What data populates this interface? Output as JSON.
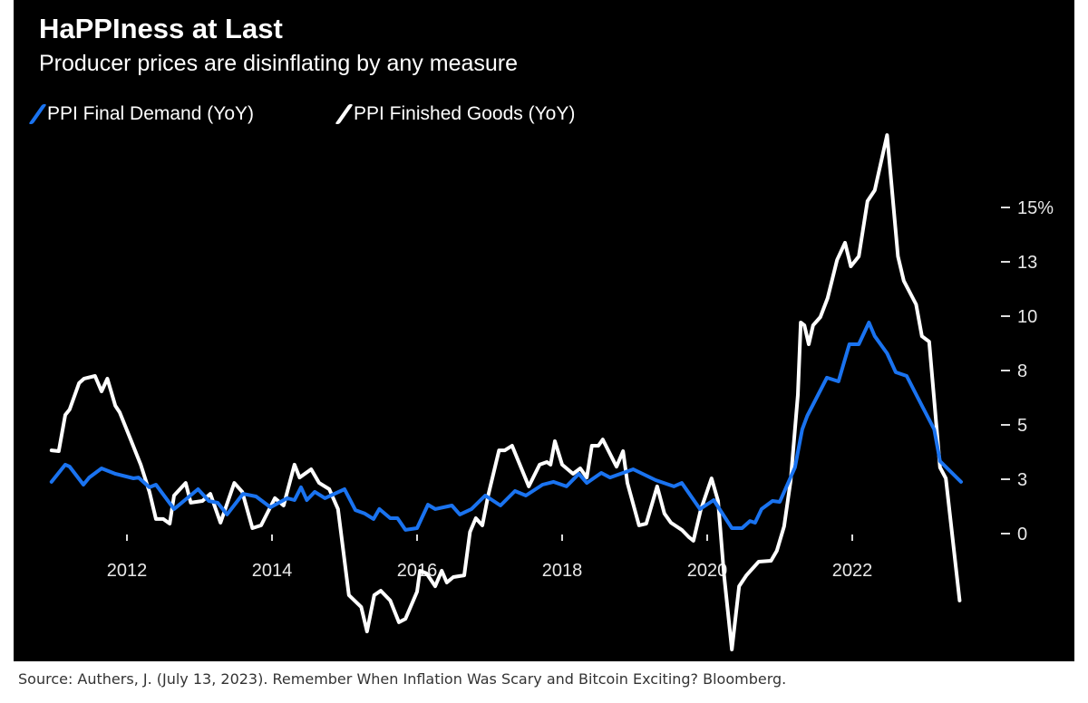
{
  "chart_data": {
    "type": "line",
    "title": "HaPPIness at Last",
    "subtitle": "Producer prices are disinflating by any measure",
    "legend_position": "top-left",
    "grid": false,
    "xlim": [
      2010.9,
      2023.6
    ],
    "ylim": [
      -6,
      19
    ],
    "x_ticks": [
      {
        "value": 2012,
        "label": "2012"
      },
      {
        "value": 2014,
        "label": "2014"
      },
      {
        "value": 2016,
        "label": "2016"
      },
      {
        "value": 2018,
        "label": "2018"
      },
      {
        "value": 2020,
        "label": "2020"
      },
      {
        "value": 2022,
        "label": "2022"
      }
    ],
    "y_ticks": [
      {
        "value": 15,
        "label": "15%"
      },
      {
        "value": 12.5,
        "label": "13"
      },
      {
        "value": 10,
        "label": "10"
      },
      {
        "value": 7.5,
        "label": "8"
      },
      {
        "value": 5,
        "label": "5"
      },
      {
        "value": 2.5,
        "label": "3"
      },
      {
        "value": 0,
        "label": "0"
      }
    ],
    "series": [
      {
        "name": "PPI Final Demand (YoY)",
        "color": "#1a73f0",
        "points": [
          [
            2010.96,
            2.38
          ],
          [
            2011.15,
            3.17
          ],
          [
            2011.21,
            3.08
          ],
          [
            2011.4,
            2.25
          ],
          [
            2011.48,
            2.58
          ],
          [
            2011.65,
            3.0
          ],
          [
            2011.84,
            2.75
          ],
          [
            2012.09,
            2.54
          ],
          [
            2012.16,
            2.58
          ],
          [
            2012.31,
            2.13
          ],
          [
            2012.4,
            2.25
          ],
          [
            2012.65,
            1.13
          ],
          [
            2012.98,
            2.04
          ],
          [
            2013.13,
            1.5
          ],
          [
            2013.25,
            1.42
          ],
          [
            2013.38,
            0.88
          ],
          [
            2013.6,
            1.83
          ],
          [
            2013.78,
            1.71
          ],
          [
            2013.98,
            1.21
          ],
          [
            2014.21,
            1.63
          ],
          [
            2014.31,
            1.54
          ],
          [
            2014.4,
            2.13
          ],
          [
            2014.48,
            1.54
          ],
          [
            2014.59,
            1.92
          ],
          [
            2014.73,
            1.63
          ],
          [
            2015.0,
            2.04
          ],
          [
            2015.15,
            1.08
          ],
          [
            2015.28,
            0.92
          ],
          [
            2015.4,
            0.67
          ],
          [
            2015.48,
            1.13
          ],
          [
            2015.63,
            0.71
          ],
          [
            2015.73,
            0.71
          ],
          [
            2015.84,
            0.17
          ],
          [
            2016.0,
            0.25
          ],
          [
            2016.15,
            1.33
          ],
          [
            2016.25,
            1.13
          ],
          [
            2016.48,
            1.29
          ],
          [
            2016.59,
            0.88
          ],
          [
            2016.75,
            1.13
          ],
          [
            2016.94,
            1.75
          ],
          [
            2017.15,
            1.29
          ],
          [
            2017.35,
            1.96
          ],
          [
            2017.5,
            1.75
          ],
          [
            2017.73,
            2.25
          ],
          [
            2017.88,
            2.38
          ],
          [
            2018.06,
            2.17
          ],
          [
            2018.23,
            2.75
          ],
          [
            2018.34,
            2.33
          ],
          [
            2018.54,
            2.79
          ],
          [
            2018.66,
            2.58
          ],
          [
            2018.98,
            2.96
          ],
          [
            2019.29,
            2.46
          ],
          [
            2019.54,
            2.17
          ],
          [
            2019.65,
            2.33
          ],
          [
            2019.9,
            1.13
          ],
          [
            2020.09,
            1.54
          ],
          [
            2020.34,
            0.25
          ],
          [
            2020.48,
            0.25
          ],
          [
            2020.59,
            0.58
          ],
          [
            2020.66,
            0.5
          ],
          [
            2020.75,
            1.13
          ],
          [
            2020.9,
            1.5
          ],
          [
            2021.0,
            1.46
          ],
          [
            2021.21,
            3.04
          ],
          [
            2021.31,
            4.79
          ],
          [
            2021.38,
            5.42
          ],
          [
            2021.65,
            7.17
          ],
          [
            2021.81,
            7.0
          ],
          [
            2021.96,
            8.71
          ],
          [
            2022.09,
            8.71
          ],
          [
            2022.23,
            9.71
          ],
          [
            2022.31,
            9.08
          ],
          [
            2022.48,
            8.29
          ],
          [
            2022.6,
            7.42
          ],
          [
            2022.75,
            7.25
          ],
          [
            2022.91,
            6.21
          ],
          [
            2023.13,
            4.79
          ],
          [
            2023.21,
            3.33
          ],
          [
            2023.5,
            2.38
          ]
        ]
      },
      {
        "name": "PPI Finished Goods (YoY)",
        "color": "#ffffff",
        "points": [
          [
            2010.96,
            3.83
          ],
          [
            2011.06,
            3.79
          ],
          [
            2011.15,
            5.46
          ],
          [
            2011.21,
            5.71
          ],
          [
            2011.34,
            6.92
          ],
          [
            2011.41,
            7.13
          ],
          [
            2011.56,
            7.25
          ],
          [
            2011.65,
            6.54
          ],
          [
            2011.73,
            7.13
          ],
          [
            2011.84,
            5.88
          ],
          [
            2011.9,
            5.58
          ],
          [
            2012.04,
            4.42
          ],
          [
            2012.19,
            3.17
          ],
          [
            2012.31,
            1.92
          ],
          [
            2012.4,
            0.67
          ],
          [
            2012.5,
            0.67
          ],
          [
            2012.59,
            0.46
          ],
          [
            2012.65,
            1.75
          ],
          [
            2012.81,
            2.33
          ],
          [
            2012.88,
            1.42
          ],
          [
            2013.04,
            1.5
          ],
          [
            2013.15,
            1.83
          ],
          [
            2013.29,
            0.5
          ],
          [
            2013.48,
            2.33
          ],
          [
            2013.59,
            1.92
          ],
          [
            2013.73,
            0.25
          ],
          [
            2013.85,
            0.38
          ],
          [
            2014.04,
            1.63
          ],
          [
            2014.16,
            1.29
          ],
          [
            2014.31,
            3.17
          ],
          [
            2014.38,
            2.58
          ],
          [
            2014.54,
            2.96
          ],
          [
            2014.65,
            2.33
          ],
          [
            2014.79,
            2.04
          ],
          [
            2014.91,
            1.13
          ],
          [
            2015.06,
            -2.83
          ],
          [
            2015.23,
            -3.38
          ],
          [
            2015.31,
            -4.5
          ],
          [
            2015.41,
            -2.83
          ],
          [
            2015.5,
            -2.63
          ],
          [
            2015.63,
            -3.08
          ],
          [
            2015.75,
            -4.08
          ],
          [
            2015.84,
            -3.92
          ],
          [
            2016.0,
            -2.67
          ],
          [
            2016.04,
            -1.71
          ],
          [
            2016.13,
            -1.83
          ],
          [
            2016.25,
            -2.42
          ],
          [
            2016.34,
            -1.71
          ],
          [
            2016.41,
            -2.25
          ],
          [
            2016.5,
            -2.0
          ],
          [
            2016.65,
            -1.92
          ],
          [
            2016.73,
            0.08
          ],
          [
            2016.81,
            0.71
          ],
          [
            2016.9,
            0.38
          ],
          [
            2016.98,
            1.75
          ],
          [
            2017.13,
            3.83
          ],
          [
            2017.21,
            3.83
          ],
          [
            2017.31,
            4.04
          ],
          [
            2017.54,
            2.17
          ],
          [
            2017.69,
            3.17
          ],
          [
            2017.79,
            3.29
          ],
          [
            2017.84,
            3.17
          ],
          [
            2017.9,
            4.25
          ],
          [
            2018.0,
            3.17
          ],
          [
            2018.15,
            2.75
          ],
          [
            2018.25,
            3.0
          ],
          [
            2018.34,
            2.58
          ],
          [
            2018.41,
            4.04
          ],
          [
            2018.5,
            4.04
          ],
          [
            2018.56,
            4.33
          ],
          [
            2018.73,
            3.21
          ],
          [
            2018.75,
            3.08
          ],
          [
            2018.84,
            3.79
          ],
          [
            2018.9,
            2.33
          ],
          [
            2019.06,
            0.38
          ],
          [
            2019.16,
            0.46
          ],
          [
            2019.31,
            2.17
          ],
          [
            2019.41,
            0.92
          ],
          [
            2019.5,
            0.5
          ],
          [
            2019.65,
            0.17
          ],
          [
            2019.75,
            -0.17
          ],
          [
            2019.81,
            -0.33
          ],
          [
            2019.91,
            1.08
          ],
          [
            2020.06,
            2.54
          ],
          [
            2020.15,
            1.5
          ],
          [
            2020.23,
            -1.83
          ],
          [
            2020.34,
            -5.33
          ],
          [
            2020.44,
            -2.42
          ],
          [
            2020.54,
            -1.92
          ],
          [
            2020.71,
            -1.29
          ],
          [
            2020.88,
            -1.25
          ],
          [
            2020.96,
            -0.79
          ],
          [
            2021.06,
            0.33
          ],
          [
            2021.15,
            2.42
          ],
          [
            2021.25,
            6.38
          ],
          [
            2021.29,
            9.71
          ],
          [
            2021.34,
            9.58
          ],
          [
            2021.4,
            8.71
          ],
          [
            2021.46,
            9.58
          ],
          [
            2021.56,
            9.96
          ],
          [
            2021.66,
            10.83
          ],
          [
            2021.79,
            12.58
          ],
          [
            2021.9,
            13.38
          ],
          [
            2021.98,
            12.29
          ],
          [
            2022.09,
            12.75
          ],
          [
            2022.21,
            15.29
          ],
          [
            2022.31,
            15.79
          ],
          [
            2022.48,
            18.33
          ],
          [
            2022.63,
            12.75
          ],
          [
            2022.71,
            11.63
          ],
          [
            2022.88,
            10.54
          ],
          [
            2022.96,
            9.08
          ],
          [
            2023.06,
            8.83
          ],
          [
            2023.21,
            3.04
          ],
          [
            2023.29,
            2.54
          ],
          [
            2023.48,
            -3.08
          ]
        ]
      }
    ]
  },
  "source": "Source: Authers, J. (July 13, 2023). Remember When Inflation Was Scary and Bitcoin Exciting? Bloomberg."
}
